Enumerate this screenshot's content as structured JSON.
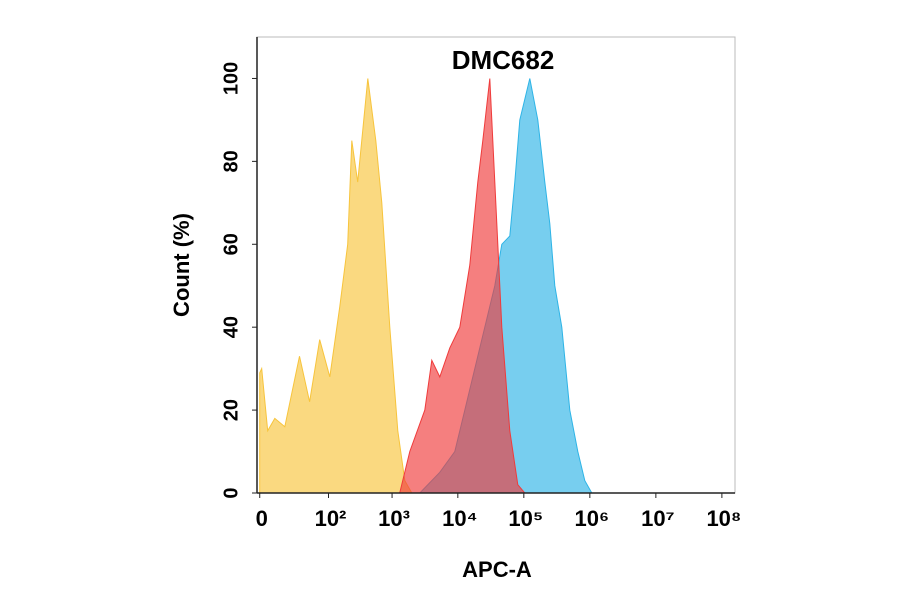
{
  "chart_data": {
    "type": "area",
    "title": "DMC682",
    "x_label": "APC-A",
    "y_label": "Count  (%)",
    "xscale": "symlog",
    "xlim": [
      -1,
      158000000
    ],
    "xticks": [
      0,
      {
        "value": 100,
        "label": "10²"
      },
      {
        "value": 1000,
        "label": "10³"
      },
      {
        "value": 10000,
        "label": "10⁴"
      },
      {
        "value": 100000,
        "label": "10⁵"
      },
      {
        "value": 1000000,
        "label": "10⁶"
      },
      {
        "value": 10000000,
        "label": "10⁷"
      },
      {
        "value": 100000000,
        "label": "10⁸"
      }
    ],
    "ylim": [
      0,
      110
    ],
    "yticks": [
      0,
      20,
      40,
      60,
      80,
      100
    ],
    "series": [
      {
        "color": "#f7c43c",
        "x": [
          0,
          0.7,
          3.2,
          6.9,
          14,
          30,
          47,
          71,
          105,
          153,
          205,
          238,
          295,
          423,
          563,
          695,
          923,
          1224,
          1564,
          2000
        ],
        "values": [
          29,
          30,
          15,
          18,
          16,
          33,
          22,
          37,
          28,
          45,
          60,
          85,
          75,
          100,
          85,
          70,
          40,
          15,
          3,
          0
        ]
      },
      {
        "color": "#2eb4e6",
        "x": [
          2645,
          5320,
          9000,
          12750,
          21520,
          36360,
          46440,
          61370,
          73100,
          86890,
          123300,
          162900,
          208000,
          247700,
          295100,
          376700,
          497700,
          657700,
          839500,
          1072000
        ],
        "values": [
          0,
          5,
          10,
          20,
          35,
          50,
          60,
          62,
          75,
          90,
          100,
          90,
          75,
          65,
          50,
          40,
          20,
          10,
          3,
          0
        ]
      },
      {
        "color": "#ef3b3b",
        "x": [
          1310,
          1865,
          3150,
          4030,
          5320,
          7560,
          10710,
          15200,
          20080,
          23920,
          30540,
          37640,
          46440,
          61370,
          81090,
          103500
        ],
        "values": [
          0,
          10,
          20,
          32,
          28,
          35,
          40,
          55,
          75,
          85,
          100,
          70,
          40,
          15,
          2,
          0
        ]
      }
    ]
  }
}
